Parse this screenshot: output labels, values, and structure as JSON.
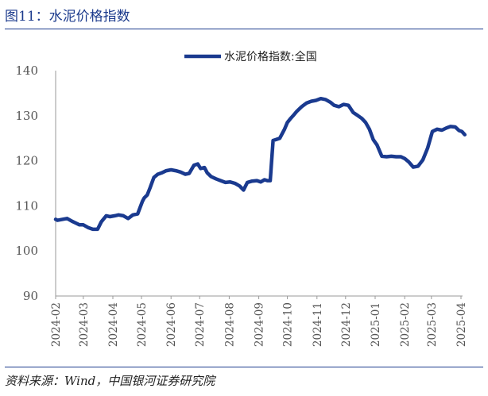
{
  "header": {
    "title": "图11：水泥价格指数"
  },
  "footer": {
    "source": "资料来源：Wind，中国银河证券研究院"
  },
  "colors": {
    "series": "#1a3a8f",
    "rule": "#1b3a8c",
    "axis": "#999999"
  },
  "chart_data": {
    "type": "line",
    "title": "",
    "xlabel": "",
    "ylabel": "",
    "ylim": [
      90,
      140
    ],
    "yticks": [
      90,
      100,
      110,
      120,
      130,
      140
    ],
    "xticks": [
      "2024-02",
      "2024-03",
      "2024-04",
      "2024-05",
      "2024-06",
      "2024-07",
      "2024-08",
      "2024-09",
      "2024-10",
      "2024-11",
      "2024-12",
      "2025-01",
      "2025-02",
      "2025-03",
      "2025-04"
    ],
    "grid": false,
    "legend": "top-center",
    "series": [
      {
        "name": "水泥价格指数:全国",
        "x": [
          "2024-02-01",
          "2024-02-03",
          "2024-02-08",
          "2024-02-13",
          "2024-02-18",
          "2024-02-22",
          "2024-02-26",
          "2024-03-01",
          "2024-03-06",
          "2024-03-11",
          "2024-03-16",
          "2024-03-20",
          "2024-03-25",
          "2024-03-29",
          "2024-04-03",
          "2024-04-07",
          "2024-04-12",
          "2024-04-17",
          "2024-04-22",
          "2024-04-27",
          "2024-05-02",
          "2024-05-04",
          "2024-05-07",
          "2024-05-10",
          "2024-05-14",
          "2024-05-18",
          "2024-05-22",
          "2024-05-27",
          "2024-06-01",
          "2024-06-06",
          "2024-06-11",
          "2024-06-16",
          "2024-06-20",
          "2024-06-25",
          "2024-06-29",
          "2024-07-02",
          "2024-07-06",
          "2024-07-09",
          "2024-07-13",
          "2024-07-18",
          "2024-07-23",
          "2024-07-28",
          "2024-08-02",
          "2024-08-07",
          "2024-08-12",
          "2024-08-16",
          "2024-08-20",
          "2024-08-25",
          "2024-08-30",
          "2024-09-03",
          "2024-09-07",
          "2024-09-10",
          "2024-09-13",
          "2024-09-16",
          "2024-09-19",
          "2024-09-23",
          "2024-09-28",
          "2024-10-01",
          "2024-10-04",
          "2024-10-07",
          "2024-10-11",
          "2024-10-16",
          "2024-10-21",
          "2024-10-26",
          "2024-10-31",
          "2024-11-05",
          "2024-11-10",
          "2024-11-15",
          "2024-11-19",
          "2024-11-24",
          "2024-11-29",
          "2024-12-04",
          "2024-12-09",
          "2024-12-14",
          "2024-12-18",
          "2024-12-22",
          "2024-12-26",
          "2024-12-30",
          "2025-01-03",
          "2025-01-08",
          "2025-01-13",
          "2025-01-18",
          "2025-01-23",
          "2025-01-28",
          "2025-02-01",
          "2025-02-05",
          "2025-02-10",
          "2025-02-15",
          "2025-02-20",
          "2025-02-25",
          "2025-03-02",
          "2025-03-07",
          "2025-03-12",
          "2025-03-17",
          "2025-03-21",
          "2025-03-26",
          "2025-03-30",
          "2025-04-02",
          "2025-04-05"
        ],
        "y": [
          107.0,
          106.8,
          107.0,
          107.2,
          106.6,
          106.2,
          105.8,
          105.8,
          105.2,
          104.8,
          104.8,
          106.5,
          107.8,
          107.6,
          107.8,
          108.0,
          107.8,
          107.2,
          108.0,
          108.2,
          111.0,
          111.8,
          112.4,
          114.0,
          116.3,
          117.0,
          117.3,
          117.8,
          118.0,
          117.8,
          117.5,
          117.0,
          117.2,
          119.0,
          119.3,
          118.3,
          118.5,
          117.3,
          116.5,
          116.0,
          115.6,
          115.2,
          115.3,
          115.0,
          114.4,
          113.5,
          115.2,
          115.5,
          115.6,
          115.3,
          115.8,
          115.6,
          115.6,
          124.5,
          124.7,
          125.0,
          127.0,
          128.5,
          129.3,
          130.0,
          131.0,
          132.0,
          132.8,
          133.2,
          133.4,
          133.8,
          133.6,
          133.0,
          132.3,
          132.0,
          132.5,
          132.3,
          130.7,
          130.0,
          129.4,
          128.5,
          127.0,
          124.7,
          123.5,
          121.0,
          120.9,
          121.0,
          120.9,
          120.9,
          120.5,
          119.8,
          118.6,
          118.8,
          120.2,
          122.8,
          126.5,
          127.0,
          126.8,
          127.3,
          127.6,
          127.5,
          126.7,
          126.5,
          125.8
        ]
      }
    ]
  }
}
